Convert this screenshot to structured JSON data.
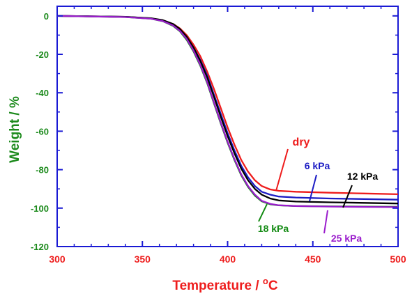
{
  "chart_data": {
    "type": "line",
    "title": "",
    "xlabel": "Temperature / °C",
    "xlabel_main": "Temperature / ",
    "xlabel_sup": "o",
    "xlabel_unit": "C",
    "ylabel": "Weight / %",
    "xlim": [
      300,
      500
    ],
    "ylim": [
      -120,
      5
    ],
    "xticks": [
      300,
      350,
      400,
      450,
      500
    ],
    "yticks": [
      0,
      -20,
      -40,
      -60,
      -80,
      -100,
      -120
    ],
    "grid": false,
    "colors": {
      "xaxis_text": "#ee1c1c",
      "yaxis_text": "#1c8a1c",
      "frame": "#1a1ad4"
    },
    "series": [
      {
        "name": "dry",
        "color": "#ee1c1c",
        "x": [
          300,
          340,
          355,
          362,
          368,
          372,
          376,
          380,
          384,
          388,
          392,
          396,
          400,
          404,
          408,
          412,
          416,
          420,
          425,
          430,
          440,
          460,
          480,
          500
        ],
        "y": [
          0,
          -0.5,
          -1.3,
          -2.3,
          -4.2,
          -6.5,
          -10,
          -15,
          -21,
          -29,
          -38,
          -48,
          -58,
          -67,
          -75,
          -81,
          -85.5,
          -88.5,
          -90.3,
          -91,
          -91.5,
          -92,
          -92.4,
          -92.8
        ]
      },
      {
        "name": "6 kPa",
        "color": "#1c1cc4",
        "x": [
          300,
          340,
          355,
          362,
          368,
          372,
          376,
          380,
          384,
          388,
          392,
          396,
          400,
          404,
          408,
          412,
          416,
          420,
          425,
          430,
          440,
          460,
          480,
          500
        ],
        "y": [
          0,
          -0.5,
          -1.3,
          -2.5,
          -4.6,
          -7,
          -11,
          -16.5,
          -23,
          -31,
          -41,
          -51,
          -61,
          -70,
          -78,
          -84,
          -88.5,
          -91.5,
          -93,
          -94,
          -94.5,
          -95,
          -95.3,
          -95.6
        ]
      },
      {
        "name": "12 kPa",
        "color": "#000000",
        "x": [
          300,
          340,
          355,
          362,
          368,
          372,
          376,
          380,
          384,
          388,
          392,
          396,
          400,
          404,
          408,
          412,
          416,
          420,
          425,
          430,
          440,
          460,
          480,
          500
        ],
        "y": [
          0,
          -0.5,
          -1.2,
          -2.2,
          -4.2,
          -6.8,
          -10.8,
          -16.5,
          -23.5,
          -32,
          -42,
          -52.5,
          -62.5,
          -71.5,
          -79.5,
          -85.5,
          -90,
          -93,
          -95,
          -96,
          -96.6,
          -97,
          -97.3,
          -97.6
        ]
      },
      {
        "name": "18 kPa",
        "color": "#128a12",
        "x": [
          300,
          340,
          355,
          362,
          368,
          372,
          376,
          380,
          384,
          388,
          392,
          396,
          400,
          404,
          408,
          412,
          416,
          420,
          425,
          430,
          440,
          460,
          480,
          500
        ],
        "y": [
          0,
          -0.6,
          -1.5,
          -2.8,
          -5.2,
          -8,
          -12.5,
          -18.5,
          -26,
          -35,
          -45.5,
          -56,
          -66,
          -75,
          -83,
          -89,
          -93.5,
          -96.5,
          -98,
          -98.6,
          -98.9,
          -99.1,
          -99.2,
          -99.3
        ]
      },
      {
        "name": "25 kPa",
        "color": "#9a1ccc",
        "x": [
          300,
          340,
          355,
          362,
          368,
          372,
          376,
          380,
          384,
          388,
          392,
          396,
          400,
          404,
          408,
          412,
          416,
          420,
          425,
          430,
          440,
          460,
          480,
          500
        ],
        "y": [
          0,
          -0.6,
          -1.5,
          -2.7,
          -5,
          -7.8,
          -12,
          -18,
          -25.5,
          -34.5,
          -45,
          -55.5,
          -65.5,
          -74.5,
          -82.5,
          -88.5,
          -93,
          -96.2,
          -97.8,
          -98.5,
          -98.9,
          -99.2,
          -99.4,
          -99.5
        ]
      }
    ]
  }
}
